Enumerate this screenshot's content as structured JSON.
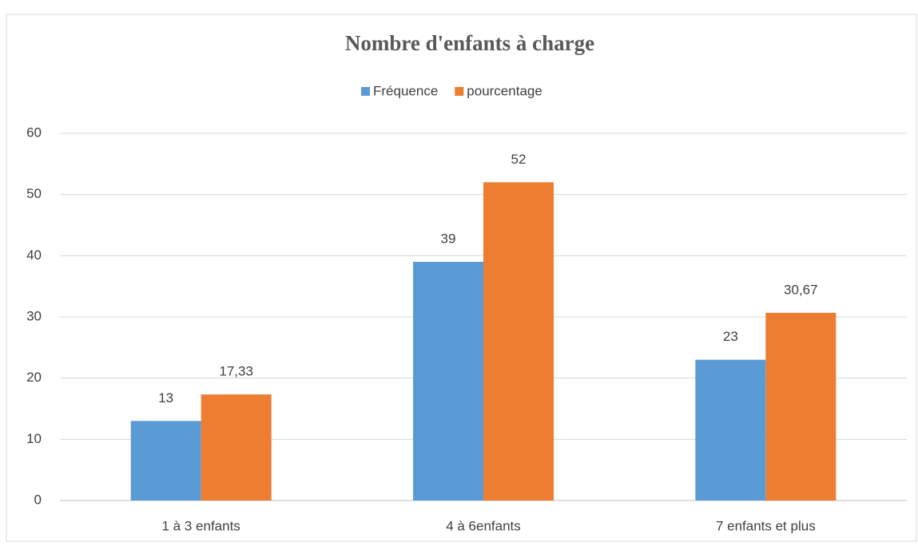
{
  "chart_data": {
    "type": "bar",
    "title": "Nombre d'enfants à charge",
    "categories": [
      "1 à 3 enfants",
      "4 à 6enfants",
      "7 enfants et plus"
    ],
    "series": [
      {
        "name": "Fréquence",
        "color": "#5b9bd5",
        "values": [
          13,
          39,
          23
        ]
      },
      {
        "name": "pourcentage",
        "color": "#ed7d31",
        "values": [
          17.33,
          52,
          30.67
        ],
        "value_labels": [
          "17,33",
          "52",
          "30,67"
        ]
      }
    ],
    "ylim": [
      0,
      60
    ],
    "yticks": [
      0,
      10,
      20,
      30,
      40,
      50,
      60
    ],
    "grid": true,
    "legend": "top"
  }
}
